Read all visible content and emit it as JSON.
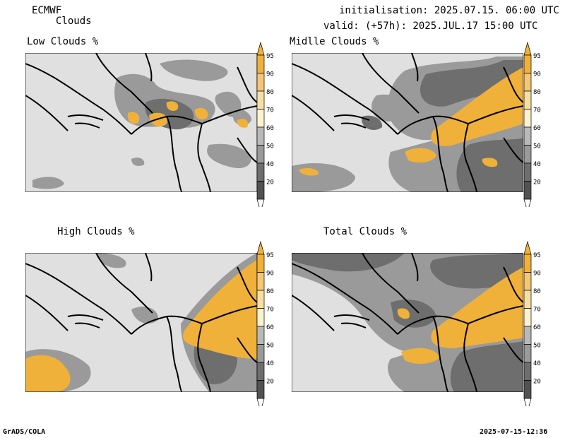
{
  "header": {
    "model": "ECMWF",
    "product": "Clouds",
    "init_line": "initialisation: 2025.07.15. 06:00 UTC",
    "valid_line": "valid: (+57h): 2025.JUL.17 15:00 UTC"
  },
  "panels": [
    {
      "title": "Low Clouds %"
    },
    {
      "title": "Midlle Clouds %"
    },
    {
      "title": "High Clouds %"
    },
    {
      "title": "Total Clouds %"
    }
  ],
  "colorbar": {
    "labels": [
      "95",
      "90",
      "80",
      "70",
      "60",
      "50",
      "40",
      "20"
    ],
    "colors": [
      "#f0b13a",
      "#f4c775",
      "#f7dfa3",
      "#fbf3cf",
      "#b9b9b9",
      "#9a9a9a",
      "#6e6e6e",
      "#525252"
    ]
  },
  "colors": {
    "background": "#e0e0e0",
    "cloud_high": "#f0b13a",
    "border": "#000000"
  },
  "footer": {
    "left": "GrADS/COLA",
    "right": "2025-07-15-12:36"
  }
}
